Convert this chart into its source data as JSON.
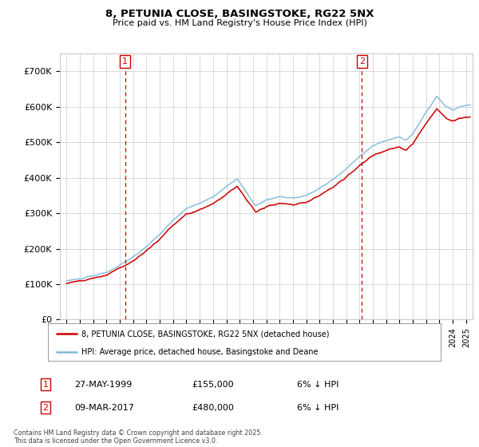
{
  "title1": "8, PETUNIA CLOSE, BASINGSTOKE, RG22 5NX",
  "title2": "Price paid vs. HM Land Registry's House Price Index (HPI)",
  "xlim_start": 1994.5,
  "xlim_end": 2025.5,
  "ylim_bottom": 0,
  "ylim_top": 750000,
  "yticks": [
    0,
    100000,
    200000,
    300000,
    400000,
    500000,
    600000,
    700000
  ],
  "ytick_labels": [
    "£0",
    "£100K",
    "£200K",
    "£300K",
    "£400K",
    "£500K",
    "£600K",
    "£700K"
  ],
  "purchase1_x": 1999.4,
  "purchase1_y": 155000,
  "purchase1_label": "1",
  "purchase2_x": 2017.18,
  "purchase2_y": 480000,
  "purchase2_label": "2",
  "hpi_color": "#7fb8d8",
  "price_color": "#cc0000",
  "legend_price_label": "8, PETUNIA CLOSE, BASINGSTOKE, RG22 5NX (detached house)",
  "legend_hpi_label": "HPI: Average price, detached house, Basingstoke and Deane",
  "annotation1_date": "27-MAY-1999",
  "annotation1_price": "£155,000",
  "annotation1_hpi": "6% ↓ HPI",
  "annotation2_date": "09-MAR-2017",
  "annotation2_price": "£480,000",
  "annotation2_hpi": "6% ↓ HPI",
  "footer": "Contains HM Land Registry data © Crown copyright and database right 2025.\nThis data is licensed under the Open Government Licence v3.0.",
  "bg_color": "#ffffff",
  "grid_color": "#cccccc"
}
